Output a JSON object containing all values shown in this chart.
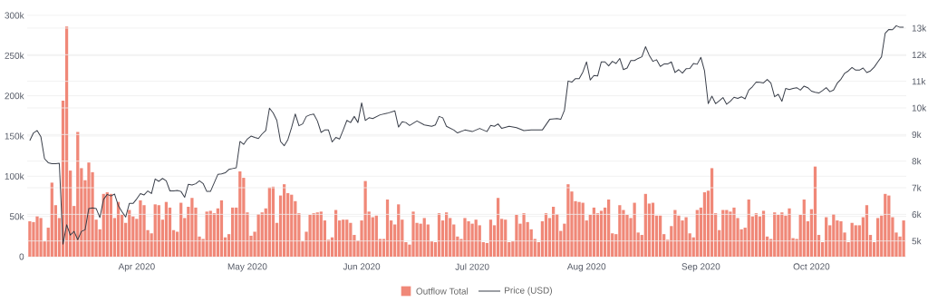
{
  "chart_data": {
    "type": "bar",
    "x": [
      "2020-03-03",
      "2020-03-04",
      "2020-03-05",
      "2020-03-06",
      "2020-03-07",
      "2020-03-08",
      "2020-03-09",
      "2020-03-10",
      "2020-03-11",
      "2020-03-12",
      "2020-03-13",
      "2020-03-14",
      "2020-03-15",
      "2020-03-16",
      "2020-03-17",
      "2020-03-18",
      "2020-03-19",
      "2020-03-20",
      "2020-03-21",
      "2020-03-22",
      "2020-03-23",
      "2020-03-24",
      "2020-03-25",
      "2020-03-26",
      "2020-03-27",
      "2020-03-28",
      "2020-03-29",
      "2020-03-30",
      "2020-03-31",
      "2020-04-01",
      "2020-04-02",
      "2020-04-03",
      "2020-04-04",
      "2020-04-05",
      "2020-04-06",
      "2020-04-07",
      "2020-04-08",
      "2020-04-09",
      "2020-04-10",
      "2020-04-11",
      "2020-04-12",
      "2020-04-13",
      "2020-04-14",
      "2020-04-15",
      "2020-04-16",
      "2020-04-17",
      "2020-04-18",
      "2020-04-19",
      "2020-04-20",
      "2020-04-21",
      "2020-04-22",
      "2020-04-23",
      "2020-04-24",
      "2020-04-25",
      "2020-04-26",
      "2020-04-27",
      "2020-04-28",
      "2020-04-29",
      "2020-04-30",
      "2020-05-01",
      "2020-05-02",
      "2020-05-03",
      "2020-05-04",
      "2020-05-05",
      "2020-05-06",
      "2020-05-07",
      "2020-05-08",
      "2020-05-09",
      "2020-05-10",
      "2020-05-11",
      "2020-05-12",
      "2020-05-13",
      "2020-05-14",
      "2020-05-15",
      "2020-05-16",
      "2020-05-17",
      "2020-05-18",
      "2020-05-19",
      "2020-05-20",
      "2020-05-21",
      "2020-05-22",
      "2020-05-23",
      "2020-05-24",
      "2020-05-25",
      "2020-05-26",
      "2020-05-27",
      "2020-05-28",
      "2020-05-29",
      "2020-05-30",
      "2020-05-31",
      "2020-06-01",
      "2020-06-02",
      "2020-06-03",
      "2020-06-04",
      "2020-06-05",
      "2020-06-06",
      "2020-06-07",
      "2020-06-08",
      "2020-06-09",
      "2020-06-10",
      "2020-06-11",
      "2020-06-12",
      "2020-06-13",
      "2020-06-14",
      "2020-06-15",
      "2020-06-16",
      "2020-06-17",
      "2020-06-18",
      "2020-06-19",
      "2020-06-20",
      "2020-06-21",
      "2020-06-22",
      "2020-06-23",
      "2020-06-24",
      "2020-06-25",
      "2020-06-26",
      "2020-06-27",
      "2020-06-28",
      "2020-06-29",
      "2020-06-30",
      "2020-07-01",
      "2020-07-02",
      "2020-07-03",
      "2020-07-04",
      "2020-07-05",
      "2020-07-06",
      "2020-07-07",
      "2020-07-08",
      "2020-07-09",
      "2020-07-10",
      "2020-07-11",
      "2020-07-12",
      "2020-07-13",
      "2020-07-14",
      "2020-07-15",
      "2020-07-16",
      "2020-07-17",
      "2020-07-18",
      "2020-07-19",
      "2020-07-20",
      "2020-07-21",
      "2020-07-22",
      "2020-07-23",
      "2020-07-24",
      "2020-07-25",
      "2020-07-26",
      "2020-07-27",
      "2020-07-28",
      "2020-07-29",
      "2020-07-30",
      "2020-07-31",
      "2020-08-01",
      "2020-08-02",
      "2020-08-03",
      "2020-08-04",
      "2020-08-05",
      "2020-08-06",
      "2020-08-07",
      "2020-08-08",
      "2020-08-09",
      "2020-08-10",
      "2020-08-11",
      "2020-08-12",
      "2020-08-13",
      "2020-08-14",
      "2020-08-15",
      "2020-08-16",
      "2020-08-17",
      "2020-08-18",
      "2020-08-19",
      "2020-08-20",
      "2020-08-21",
      "2020-08-22",
      "2020-08-23",
      "2020-08-24",
      "2020-08-25",
      "2020-08-26",
      "2020-08-27",
      "2020-08-28",
      "2020-08-29",
      "2020-08-30",
      "2020-08-31",
      "2020-09-01",
      "2020-09-02",
      "2020-09-03",
      "2020-09-04",
      "2020-09-05",
      "2020-09-06",
      "2020-09-07",
      "2020-09-08",
      "2020-09-09",
      "2020-09-10",
      "2020-09-11",
      "2020-09-12",
      "2020-09-13",
      "2020-09-14",
      "2020-09-15",
      "2020-09-16",
      "2020-09-17",
      "2020-09-18",
      "2020-09-19",
      "2020-09-20",
      "2020-09-21",
      "2020-09-22",
      "2020-09-23",
      "2020-09-24",
      "2020-09-25",
      "2020-09-26",
      "2020-09-27",
      "2020-09-28",
      "2020-09-29",
      "2020-09-30",
      "2020-10-01",
      "2020-10-02",
      "2020-10-03",
      "2020-10-04",
      "2020-10-05",
      "2020-10-06",
      "2020-10-07",
      "2020-10-08",
      "2020-10-09",
      "2020-10-10",
      "2020-10-11",
      "2020-10-12",
      "2020-10-13",
      "2020-10-14",
      "2020-10-15",
      "2020-10-16",
      "2020-10-17",
      "2020-10-18",
      "2020-10-19",
      "2020-10-20",
      "2020-10-21",
      "2020-10-22",
      "2020-10-23",
      "2020-10-24",
      "2020-10-25",
      "2020-10-26"
    ],
    "xlim": [
      "2020-03-02T07:00",
      "2020-10-26T17:00"
    ],
    "xticks": [
      {
        "value": "2020-04-01",
        "label": "Apr 2020"
      },
      {
        "value": "2020-05-01",
        "label": "May 2020"
      },
      {
        "value": "2020-06-01",
        "label": "Jun 2020"
      },
      {
        "value": "2020-07-01",
        "label": "Jul 2020"
      },
      {
        "value": "2020-08-01",
        "label": "Aug 2020"
      },
      {
        "value": "2020-09-01",
        "label": "Sep 2020"
      },
      {
        "value": "2020-10-01",
        "label": "Oct 2020"
      }
    ],
    "ylim": [
      0,
      301000
    ],
    "yticks": [
      0,
      {
        "value": 50000,
        "label": "50k"
      },
      {
        "value": 100000,
        "label": "100k"
      },
      {
        "value": 150000,
        "label": "150k"
      },
      {
        "value": 200000,
        "label": "200k"
      },
      {
        "value": 250000,
        "label": "250k"
      },
      {
        "value": 300000,
        "label": "300k"
      }
    ],
    "y2lim": [
      4410,
      13510
    ],
    "y2ticks": [
      {
        "value": 5000,
        "label": "5k"
      },
      {
        "value": 6000,
        "label": "6k"
      },
      {
        "value": 7000,
        "label": "7k"
      },
      {
        "value": 8000,
        "label": "8k"
      },
      {
        "value": 9000,
        "label": "9k"
      },
      {
        "value": 10000,
        "label": "10k"
      },
      {
        "value": 11000,
        "label": "11k"
      },
      {
        "value": 12000,
        "label": "12k"
      },
      {
        "value": 13000,
        "label": "13k"
      }
    ],
    "grid": "y",
    "legend": "bottom",
    "series": [
      {
        "name": "Outflow Total",
        "color": "#f08878",
        "values": [
          44000,
          43000,
          50000,
          48000,
          19000,
          36000,
          92000,
          64000,
          48000,
          194000,
          286000,
          107000,
          63000,
          155000,
          110000,
          95000,
          117000,
          105000,
          46000,
          34000,
          78000,
          80000,
          78000,
          48000,
          68000,
          52000,
          42000,
          58000,
          50000,
          47000,
          70000,
          64000,
          33000,
          29000,
          65000,
          64000,
          46000,
          68000,
          61000,
          33000,
          31000,
          67000,
          48000,
          62000,
          73000,
          61000,
          25000,
          22000,
          56000,
          57000,
          54000,
          60000,
          70000,
          24000,
          28000,
          61000,
          61000,
          106000,
          98000,
          55000,
          26000,
          31000,
          53000,
          55000,
          60000,
          86000,
          87000,
          42000,
          76000,
          90000,
          79000,
          77000,
          69000,
          54000,
          19000,
          31000,
          52000,
          54000,
          55000,
          56000,
          45000,
          21000,
          24000,
          58000,
          45000,
          46000,
          46000,
          42000,
          27000,
          20000,
          45000,
          94000,
          56000,
          49000,
          51000,
          22000,
          22000,
          71000,
          45000,
          40000,
          65000,
          46000,
          18000,
          15000,
          56000,
          42000,
          41000,
          48000,
          40000,
          19000,
          18000,
          54000,
          45000,
          55000,
          48000,
          40000,
          25000,
          22000,
          48000,
          44000,
          41000,
          46000,
          39000,
          18000,
          17000,
          46000,
          39000,
          73000,
          47000,
          46000,
          18000,
          19000,
          52000,
          41000,
          54000,
          43000,
          34000,
          22000,
          18000,
          44000,
          54000,
          48000,
          62000,
          53000,
          32000,
          41000,
          90000,
          81000,
          69000,
          68000,
          67000,
          45000,
          52000,
          61000,
          54000,
          57000,
          61000,
          71000,
          29000,
          28000,
          64000,
          58000,
          52000,
          48000,
          67000,
          30000,
          27000,
          78000,
          66000,
          67000,
          51000,
          51000,
          28000,
          21000,
          38000,
          58000,
          51000,
          45000,
          49000,
          29000,
          24000,
          58000,
          61000,
          80000,
          82000,
          110000,
          54000,
          33000,
          58000,
          58000,
          56000,
          61000,
          48000,
          34000,
          36000,
          71000,
          50000,
          54000,
          50000,
          57000,
          25000,
          22000,
          55000,
          52000,
          55000,
          51000,
          60000,
          23000,
          22000,
          52000,
          71000,
          44000,
          59000,
          112000,
          27000,
          18000,
          49000,
          39000,
          53000,
          45000,
          44000,
          30000,
          18000,
          42000,
          39000,
          39000,
          49000,
          64000,
          27000,
          18000,
          48000,
          51000,
          78000,
          76000,
          49000,
          30000,
          25000,
          45000
        ]
      },
      {
        "name": "Price (USD)",
        "type": "line",
        "axis": "y2",
        "color": "#3a3f4a",
        "x": [
          "2020-03-03",
          "2020-03-04",
          "2020-03-05",
          "2020-03-06",
          "2020-03-07",
          "2020-03-08",
          "2020-03-09",
          "2020-03-10",
          "2020-03-11",
          "2020-03-12",
          "2020-03-13",
          "2020-03-14",
          "2020-03-15",
          "2020-03-16",
          "2020-03-17",
          "2020-03-18",
          "2020-03-19",
          "2020-03-20",
          "2020-03-21",
          "2020-03-22",
          "2020-03-23",
          "2020-03-24",
          "2020-03-25",
          "2020-03-26",
          "2020-03-27",
          "2020-03-28",
          "2020-03-29",
          "2020-03-30",
          "2020-03-31",
          "2020-04-01",
          "2020-04-02",
          "2020-04-03",
          "2020-04-04",
          "2020-04-05",
          "2020-04-06",
          "2020-04-07",
          "2020-04-08",
          "2020-04-09",
          "2020-04-10",
          "2020-04-11",
          "2020-04-12",
          "2020-04-13",
          "2020-04-14",
          "2020-04-15",
          "2020-04-16",
          "2020-04-17",
          "2020-04-18",
          "2020-04-19",
          "2020-04-20",
          "2020-04-21",
          "2020-04-22",
          "2020-04-23",
          "2020-04-24",
          "2020-04-25",
          "2020-04-26",
          "2020-04-27",
          "2020-04-28",
          "2020-04-29",
          "2020-04-30",
          "2020-05-01",
          "2020-05-02",
          "2020-05-03",
          "2020-05-04",
          "2020-05-05",
          "2020-05-06",
          "2020-05-07",
          "2020-05-08",
          "2020-05-09",
          "2020-05-10",
          "2020-05-11",
          "2020-05-12",
          "2020-05-13",
          "2020-05-14",
          "2020-05-15",
          "2020-05-16",
          "2020-05-17",
          "2020-05-18",
          "2020-05-19",
          "2020-05-20",
          "2020-05-21",
          "2020-05-22",
          "2020-05-23",
          "2020-05-24",
          "2020-05-25",
          "2020-05-26",
          "2020-05-27",
          "2020-05-28",
          "2020-05-29",
          "2020-05-30",
          "2020-05-31",
          "2020-06-01",
          "2020-06-02",
          "2020-06-03",
          "2020-06-04",
          "2020-06-06",
          "2020-06-08",
          "2020-06-10",
          "2020-06-11",
          "2020-06-12",
          "2020-06-13",
          "2020-06-14",
          "2020-06-16",
          "2020-06-18",
          "2020-06-20",
          "2020-06-21",
          "2020-06-22",
          "2020-06-23",
          "2020-06-24",
          "2020-06-26",
          "2020-06-27",
          "2020-06-29",
          "2020-07-01",
          "2020-07-03",
          "2020-07-05",
          "2020-07-06",
          "2020-07-07",
          "2020-07-08",
          "2020-07-09",
          "2020-07-11",
          "2020-07-13",
          "2020-07-15",
          "2020-07-17",
          "2020-07-20",
          "2020-07-22",
          "2020-07-24",
          "2020-07-25",
          "2020-07-26",
          "2020-07-27",
          "2020-07-28",
          "2020-07-29",
          "2020-07-30",
          "2020-07-31",
          "2020-08-01",
          "2020-08-02",
          "2020-08-03",
          "2020-08-04",
          "2020-08-05",
          "2020-08-06",
          "2020-08-07",
          "2020-08-08",
          "2020-08-09",
          "2020-08-10",
          "2020-08-11",
          "2020-08-12",
          "2020-08-13",
          "2020-08-14",
          "2020-08-15",
          "2020-08-16",
          "2020-08-17",
          "2020-08-18",
          "2020-08-19",
          "2020-08-20",
          "2020-08-21",
          "2020-08-22",
          "2020-08-23",
          "2020-08-24",
          "2020-08-25",
          "2020-08-26",
          "2020-08-27",
          "2020-08-28",
          "2020-08-29",
          "2020-08-30",
          "2020-08-31",
          "2020-09-01",
          "2020-09-02",
          "2020-09-03",
          "2020-09-04",
          "2020-09-05",
          "2020-09-06",
          "2020-09-07",
          "2020-09-08",
          "2020-09-09",
          "2020-09-10",
          "2020-09-11",
          "2020-09-12",
          "2020-09-13",
          "2020-09-14",
          "2020-09-15",
          "2020-09-16",
          "2020-09-17",
          "2020-09-18",
          "2020-09-19",
          "2020-09-20",
          "2020-09-21",
          "2020-09-22",
          "2020-09-23",
          "2020-09-24",
          "2020-09-25",
          "2020-09-26",
          "2020-09-27",
          "2020-09-28",
          "2020-09-29",
          "2020-09-30",
          "2020-10-01",
          "2020-10-02",
          "2020-10-03",
          "2020-10-04",
          "2020-10-05",
          "2020-10-06",
          "2020-10-07",
          "2020-10-08",
          "2020-10-09",
          "2020-10-10",
          "2020-10-11",
          "2020-10-12",
          "2020-10-13",
          "2020-10-14",
          "2020-10-15",
          "2020-10-16",
          "2020-10-17",
          "2020-10-18",
          "2020-10-19",
          "2020-10-20",
          "2020-10-21",
          "2020-10-22",
          "2020-10-23",
          "2020-10-24",
          "2020-10-25",
          "2020-10-26"
        ],
        "values": [
          8770,
          9060,
          9150,
          8920,
          8090,
          7940,
          7900,
          7900,
          7920,
          4880,
          5610,
          5220,
          5360,
          5050,
          5360,
          5420,
          6220,
          6240,
          6220,
          5880,
          6560,
          6750,
          6690,
          6760,
          6330,
          6100,
          5900,
          6410,
          6410,
          6580,
          6780,
          6730,
          6880,
          6780,
          7330,
          7240,
          7350,
          7260,
          6880,
          6880,
          6900,
          6860,
          6640,
          7130,
          7100,
          7150,
          7260,
          7160,
          6860,
          6860,
          7180,
          7500,
          7520,
          7560,
          7690,
          7720,
          7750,
          8740,
          8630,
          8830,
          8940,
          8890,
          8850,
          9020,
          9150,
          9990,
          9810,
          9530,
          8740,
          8580,
          8810,
          9260,
          9770,
          9330,
          9400,
          9680,
          9740,
          9770,
          9510,
          9080,
          9170,
          9170,
          8720,
          8890,
          8830,
          9170,
          9530,
          9450,
          9680,
          9450,
          10190,
          9530,
          9630,
          9600,
          9740,
          9800,
          9890,
          9280,
          9480,
          9450,
          9340,
          9510,
          9360,
          9310,
          9360,
          9680,
          9630,
          9310,
          9170,
          9060,
          9170,
          9110,
          9230,
          9110,
          9340,
          9310,
          9400,
          9230,
          9310,
          9260,
          9150,
          9170,
          9170,
          9570,
          9600,
          9570,
          9910,
          11010,
          10970,
          11100,
          11100,
          11350,
          11730,
          11050,
          11220,
          11200,
          11730,
          11730,
          11580,
          11750,
          11670,
          11860,
          11440,
          11500,
          11780,
          11780,
          11860,
          11920,
          12300,
          11980,
          11750,
          11810,
          11560,
          11650,
          11650,
          11730,
          11330,
          11440,
          11310,
          11470,
          11480,
          11670,
          11640,
          11900,
          11390,
          10160,
          10440,
          10160,
          10270,
          10390,
          10140,
          10250,
          10400,
          10360,
          10420,
          10340,
          10670,
          10800,
          10970,
          10960,
          10940,
          11070,
          10930,
          10420,
          10510,
          10250,
          10730,
          10690,
          10730,
          10760,
          10670,
          10820,
          10760,
          10630,
          10590,
          10560,
          10650,
          10760,
          10610,
          10670,
          10930,
          11080,
          11300,
          11390,
          11520,
          11420,
          11420,
          11500,
          11330,
          11390,
          11530,
          11730,
          11920,
          12810,
          12950,
          12940,
          13090,
          13030,
          13030
        ]
      }
    ]
  }
}
